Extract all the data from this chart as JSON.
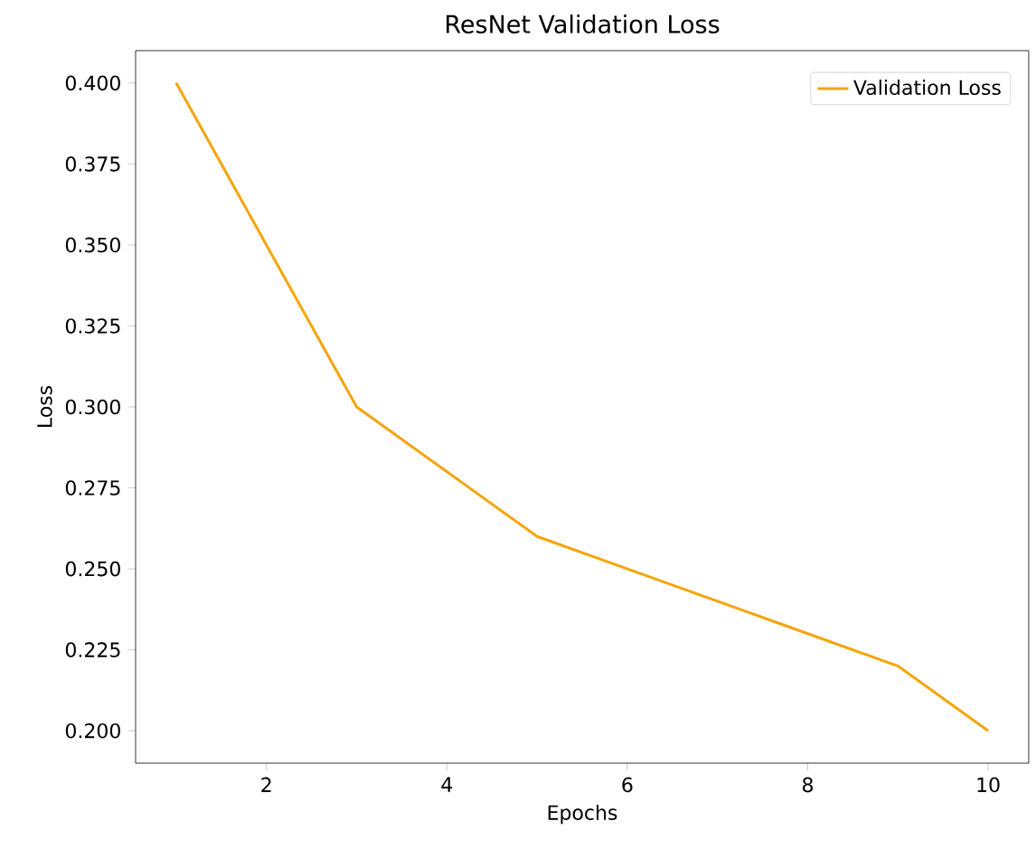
{
  "chart_data": {
    "type": "line",
    "title": "ResNet Validation Loss",
    "xlabel": "Epochs",
    "ylabel": "Loss",
    "x": [
      1,
      2,
      3,
      4,
      5,
      6,
      7,
      8,
      9,
      10
    ],
    "series": [
      {
        "name": "Validation Loss",
        "color": "#f5a50a",
        "values": [
          0.4,
          0.35,
          0.3,
          0.28,
          0.26,
          0.25,
          0.24,
          0.23,
          0.22,
          0.2
        ]
      }
    ],
    "xlim": [
      0.55,
      10.45
    ],
    "ylim": [
      0.19,
      0.41
    ],
    "xticks": [
      2,
      4,
      6,
      8,
      10
    ],
    "yticks": [
      {
        "value": 0.2,
        "label": "0.200"
      },
      {
        "value": 0.225,
        "label": "0.225"
      },
      {
        "value": 0.25,
        "label": "0.250"
      },
      {
        "value": 0.275,
        "label": "0.275"
      },
      {
        "value": 0.3,
        "label": "0.300"
      },
      {
        "value": 0.325,
        "label": "0.325"
      },
      {
        "value": 0.35,
        "label": "0.350"
      },
      {
        "value": 0.375,
        "label": "0.375"
      },
      {
        "value": 0.4,
        "label": "0.400"
      }
    ],
    "legend": "top right",
    "grid": false,
    "marker": "none",
    "line_style": "solid"
  }
}
